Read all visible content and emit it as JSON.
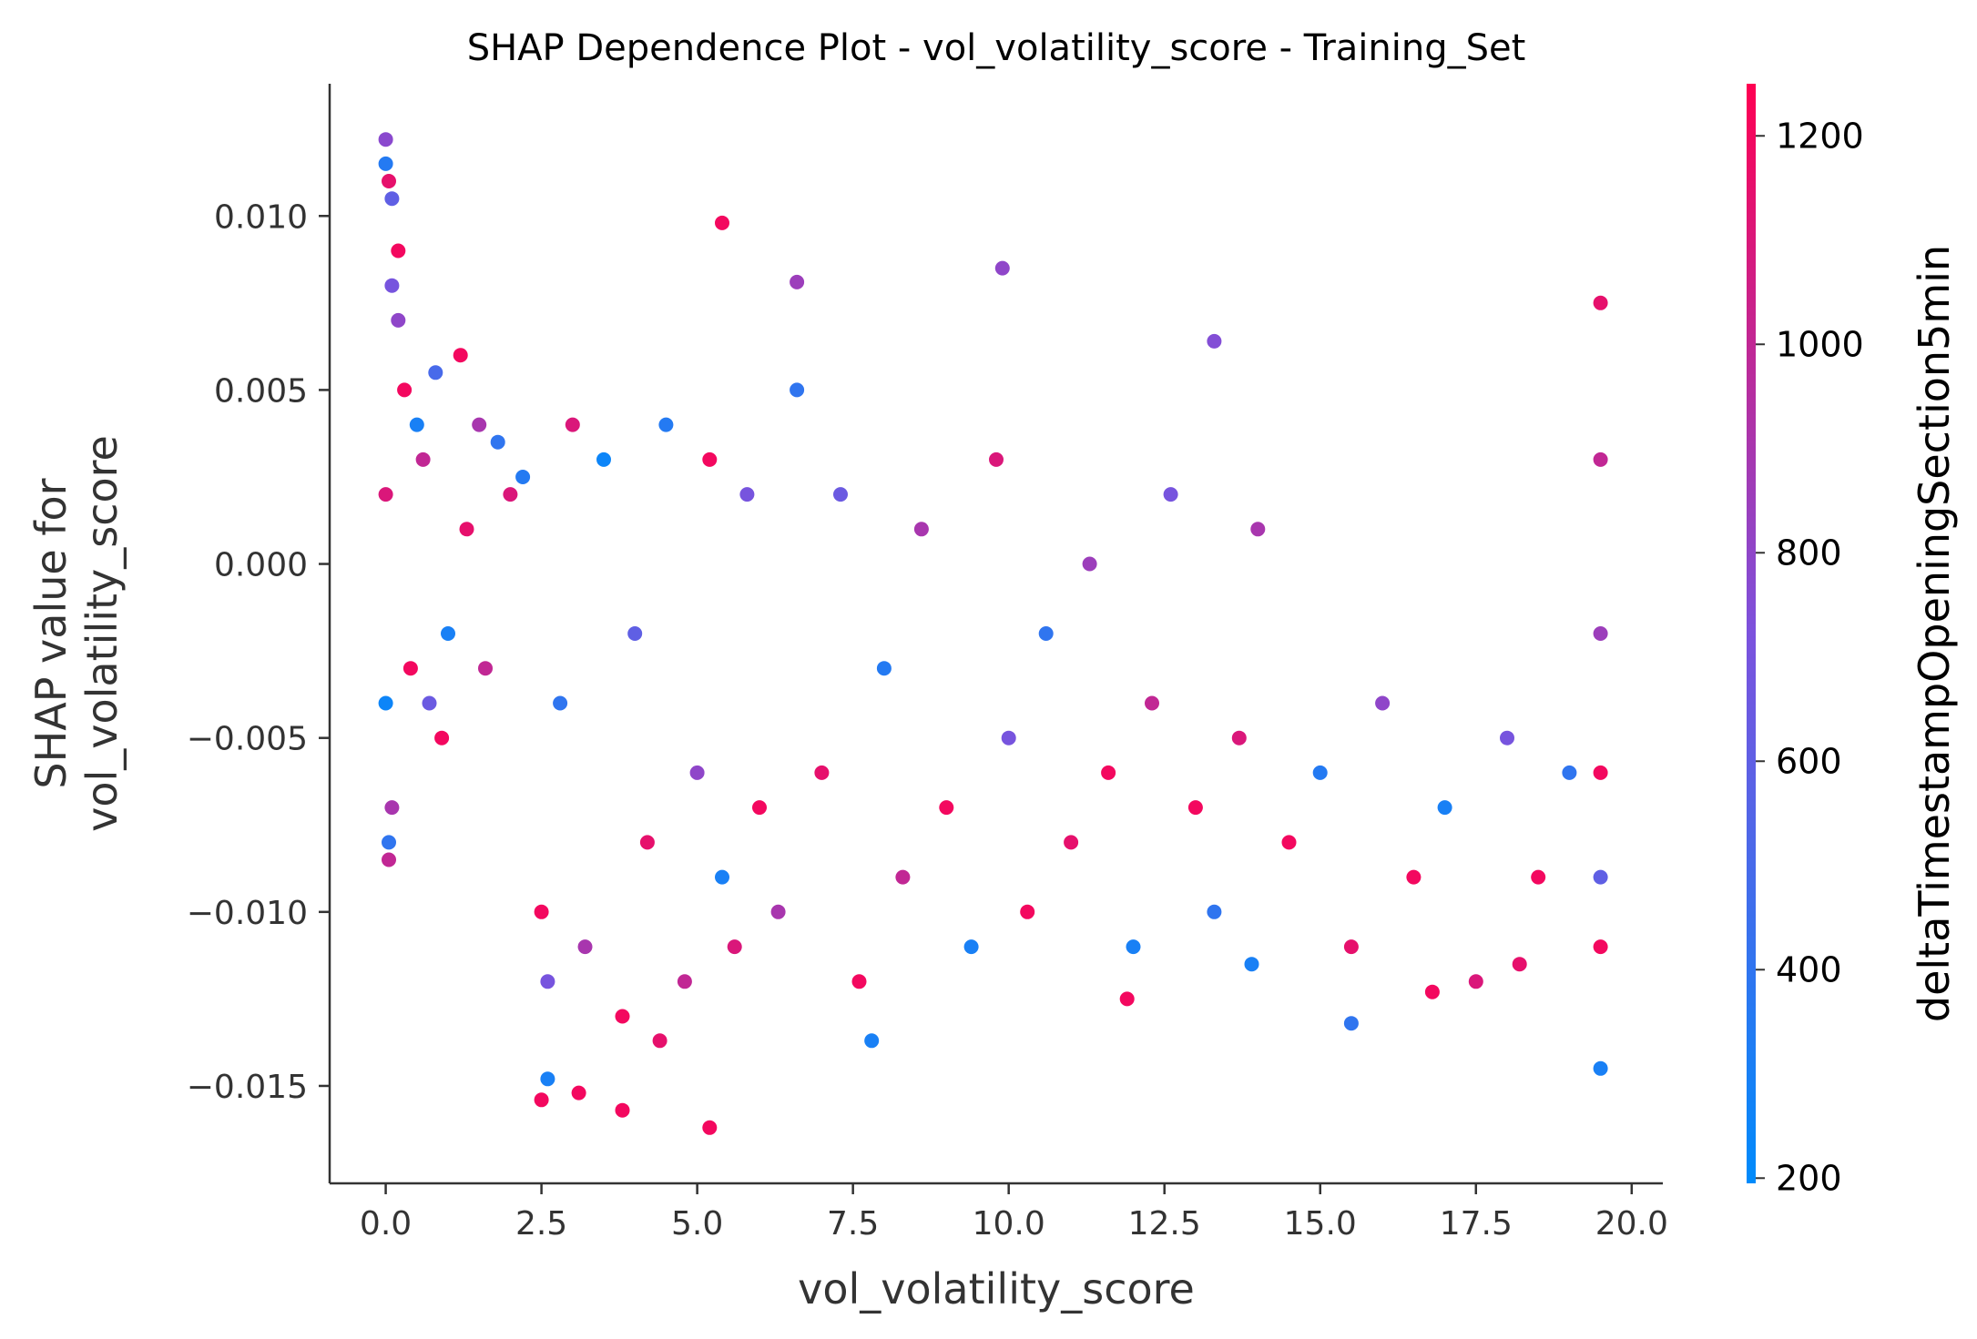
{
  "chart_data": {
    "type": "scatter",
    "title": "SHAP Dependence Plot - vol_volatility_score - Training_Set",
    "xlabel": "vol_volatility_score",
    "ylabel_line1": "SHAP value for",
    "ylabel_line2": "vol_volatility_score",
    "xlim": [
      -0.9,
      20.5
    ],
    "ylim": [
      -0.0178,
      0.0138
    ],
    "x_ticks": [
      0.0,
      2.5,
      5.0,
      7.5,
      10.0,
      12.5,
      15.0,
      17.5,
      20.0
    ],
    "x_tick_labels": [
      "0.0",
      "2.5",
      "5.0",
      "7.5",
      "10.0",
      "12.5",
      "15.0",
      "17.5",
      "20.0"
    ],
    "y_ticks": [
      0.01,
      0.005,
      0.0,
      -0.005,
      -0.01,
      -0.015
    ],
    "y_tick_labels": [
      "0.010",
      "0.005",
      "0.000",
      "−0.005",
      "−0.010",
      "−0.015"
    ],
    "colorbar": {
      "label": "deltaTimestampOpeningSection5min",
      "range": [
        195,
        1250
      ],
      "ticks": [
        200,
        400,
        600,
        800,
        1000,
        1200
      ],
      "tick_labels": [
        "200",
        "400",
        "600",
        "800",
        "1000",
        "1200"
      ],
      "colors": {
        "low": "#008bfb",
        "mid": "#7c52dd",
        "high": "#ff0052"
      }
    },
    "grid": false,
    "legend": "colorbar-right",
    "series": [
      {
        "x": [
          0.0,
          0.0,
          0.05,
          0.1,
          0.2,
          0.05,
          0.05,
          0.1,
          0.3,
          0.5,
          0.1,
          0.0,
          0.0,
          0.6,
          0.8,
          1.2,
          1.5,
          1.8,
          2.0,
          0.4,
          0.7,
          1.0,
          1.3,
          0.2,
          0.9,
          1.6,
          2.2,
          2.5,
          2.6,
          2.8,
          3.0,
          3.2,
          3.5,
          3.8,
          4.0,
          4.2,
          4.5,
          4.8,
          5.0,
          5.2,
          5.4,
          5.6,
          5.8,
          6.0,
          6.3,
          6.6,
          7.0,
          7.3,
          7.6,
          8.0,
          8.3,
          8.6,
          9.0,
          9.4,
          9.8,
          10.0,
          10.3,
          10.6,
          11.0,
          11.3,
          11.6,
          12.0,
          12.3,
          12.6,
          13.0,
          13.3,
          13.7,
          14.0,
          14.5,
          15.0,
          15.5,
          16.0,
          16.5,
          17.0,
          17.5,
          18.0,
          18.5,
          19.0,
          19.5,
          19.5,
          19.5,
          19.5,
          19.5,
          19.5,
          19.5,
          5.4,
          5.2,
          2.5,
          3.8,
          9.9,
          6.6,
          13.3,
          2.6,
          3.1,
          4.4,
          7.8,
          11.9,
          13.9,
          15.5,
          16.8,
          18.2
        ],
        "y": [
          0.0122,
          0.0115,
          0.011,
          0.0105,
          0.009,
          -0.0085,
          -0.008,
          -0.007,
          0.005,
          0.004,
          0.008,
          0.002,
          -0.004,
          0.003,
          0.0055,
          0.006,
          0.004,
          0.0035,
          0.002,
          -0.003,
          -0.004,
          -0.002,
          0.001,
          0.007,
          -0.005,
          -0.003,
          0.0025,
          -0.01,
          -0.012,
          -0.004,
          0.004,
          -0.011,
          0.003,
          -0.013,
          -0.002,
          -0.008,
          0.004,
          -0.012,
          -0.006,
          0.003,
          -0.009,
          -0.011,
          0.002,
          -0.007,
          -0.01,
          0.005,
          -0.006,
          0.002,
          -0.012,
          -0.003,
          -0.009,
          0.001,
          -0.007,
          -0.011,
          0.003,
          -0.005,
          -0.01,
          -0.002,
          -0.008,
          0.0,
          -0.006,
          -0.011,
          -0.004,
          0.002,
          -0.007,
          -0.01,
          -0.005,
          0.001,
          -0.008,
          -0.006,
          -0.011,
          -0.004,
          -0.009,
          -0.007,
          -0.012,
          -0.005,
          -0.009,
          -0.006,
          0.0075,
          -0.002,
          -0.006,
          -0.009,
          -0.0145,
          0.003,
          -0.011,
          0.0098,
          -0.0162,
          -0.0154,
          -0.0157,
          0.0085,
          0.0081,
          0.0064,
          -0.0148,
          -0.0152,
          -0.0137,
          -0.0137,
          -0.0125,
          -0.0115,
          -0.0132,
          -0.0123,
          -0.0115
        ],
        "c": [
          780,
          350,
          1150,
          600,
          1200,
          1000,
          400,
          900,
          1200,
          300,
          700,
          1100,
          250,
          1000,
          500,
          1200,
          900,
          400,
          1100,
          1200,
          650,
          300,
          1150,
          800,
          1200,
          1000,
          350,
          1200,
          700,
          400,
          1100,
          900,
          250,
          1200,
          600,
          1150,
          350,
          1000,
          800,
          1200,
          300,
          1100,
          700,
          1200,
          900,
          400,
          1150,
          650,
          1200,
          350,
          1000,
          900,
          1200,
          300,
          1100,
          700,
          1200,
          400,
          1150,
          850,
          1200,
          300,
          1000,
          700,
          1200,
          400,
          1100,
          900,
          1200,
          350,
          1150,
          800,
          1200,
          300,
          1100,
          700,
          1200,
          400,
          1150,
          850,
          1200,
          600,
          300,
          1000,
          1200,
          1200,
          1200,
          1200,
          1200,
          800,
          850,
          750,
          300,
          1200,
          1150,
          300,
          1200,
          300,
          400,
          1200,
          1150
        ]
      }
    ]
  }
}
